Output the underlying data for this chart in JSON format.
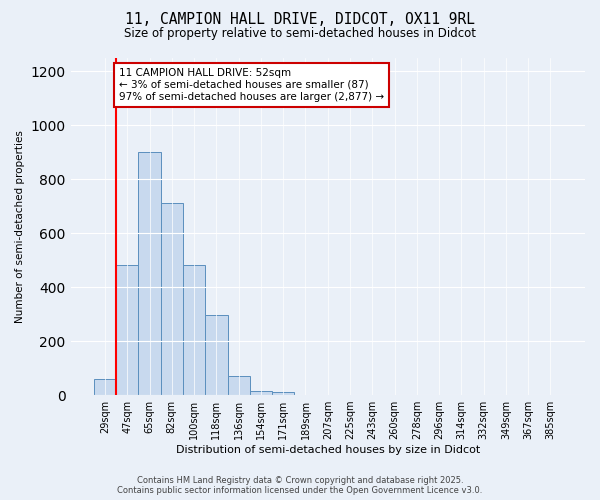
{
  "title_line1": "11, CAMPION HALL DRIVE, DIDCOT, OX11 9RL",
  "title_line2": "Size of property relative to semi-detached houses in Didcot",
  "xlabel": "Distribution of semi-detached houses by size in Didcot",
  "ylabel": "Number of semi-detached properties",
  "bin_labels": [
    "29sqm",
    "47sqm",
    "65sqm",
    "82sqm",
    "100sqm",
    "118sqm",
    "136sqm",
    "154sqm",
    "171sqm",
    "189sqm",
    "207sqm",
    "225sqm",
    "243sqm",
    "260sqm",
    "278sqm",
    "296sqm",
    "314sqm",
    "332sqm",
    "349sqm",
    "367sqm",
    "385sqm"
  ],
  "bin_values": [
    60,
    480,
    900,
    710,
    480,
    295,
    70,
    15,
    10,
    0,
    0,
    0,
    0,
    0,
    0,
    0,
    0,
    0,
    0,
    0,
    0
  ],
  "bar_color": "#c8d9ee",
  "bar_edge_color": "#5b8fbe",
  "red_line_x": 0.5,
  "annotation_text": "11 CAMPION HALL DRIVE: 52sqm\n← 3% of semi-detached houses are smaller (87)\n97% of semi-detached houses are larger (2,877) →",
  "annotation_box_color": "#ffffff",
  "annotation_box_edge": "#cc0000",
  "ylim": [
    0,
    1250
  ],
  "yticks": [
    0,
    200,
    400,
    600,
    800,
    1000,
    1200
  ],
  "background_color": "#eaf0f8",
  "footer_line1": "Contains HM Land Registry data © Crown copyright and database right 2025.",
  "footer_line2": "Contains public sector information licensed under the Open Government Licence v3.0."
}
